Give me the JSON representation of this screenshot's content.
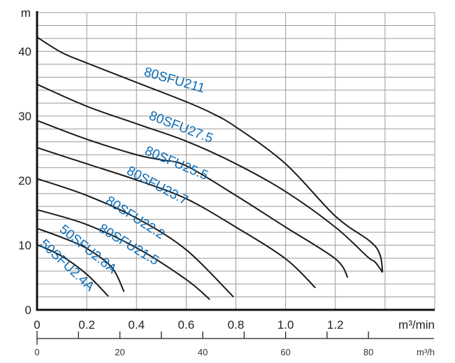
{
  "chart_data": {
    "type": "line",
    "title": "",
    "ylabel": "m",
    "xlabel": "m³/min",
    "x2label": "m³/h",
    "xlim": [
      0,
      1.6
    ],
    "ylim": [
      0,
      46
    ],
    "x2lim": [
      0,
      96
    ],
    "grid": true,
    "xticks": [
      "0",
      "0.2",
      "0.4",
      "0.6",
      "0.8",
      "1.0",
      "1.2"
    ],
    "xtick_values": [
      0,
      0.2,
      0.4,
      0.6,
      0.8,
      1.0,
      1.2
    ],
    "yticks": [
      "0",
      "10",
      "20",
      "30",
      "40"
    ],
    "ytick_values": [
      0,
      10,
      20,
      30,
      40
    ],
    "x2ticks": [
      "0",
      "20",
      "40",
      "60",
      "80"
    ],
    "x2tick_values": [
      0,
      20,
      40,
      60,
      80
    ],
    "series": [
      {
        "name": "80SFU211",
        "points": [
          [
            0,
            42.2
          ],
          [
            0.1,
            39.8
          ],
          [
            0.2,
            38.2
          ],
          [
            0.4,
            35.2
          ],
          [
            0.6,
            32.2
          ],
          [
            0.7,
            30.5
          ],
          [
            0.8,
            28.3
          ],
          [
            1.0,
            22.6
          ],
          [
            1.2,
            14.5
          ],
          [
            1.34,
            10.6
          ],
          [
            1.38,
            8.5
          ],
          [
            1.39,
            5.8
          ]
        ]
      },
      {
        "name": "80SFU27.5",
        "points": [
          [
            0,
            34.9
          ],
          [
            0.2,
            31.5
          ],
          [
            0.4,
            28.8
          ],
          [
            0.6,
            26.1
          ],
          [
            0.8,
            22.6
          ],
          [
            1.0,
            18.3
          ],
          [
            1.2,
            12.8
          ],
          [
            1.33,
            8.2
          ],
          [
            1.36,
            7.4
          ],
          [
            1.39,
            5.8
          ]
        ]
      },
      {
        "name": "80SFU25.5",
        "points": [
          [
            0,
            29.3
          ],
          [
            0.2,
            26.4
          ],
          [
            0.4,
            24.0
          ],
          [
            0.5,
            23.2
          ],
          [
            0.6,
            22.3
          ],
          [
            0.8,
            17.7
          ],
          [
            1.0,
            12.8
          ],
          [
            1.2,
            7.9
          ],
          [
            1.25,
            5.0
          ]
        ]
      },
      {
        "name": "80SFU23.7",
        "points": [
          [
            0,
            25.1
          ],
          [
            0.2,
            22.6
          ],
          [
            0.4,
            20.1
          ],
          [
            0.6,
            17.2
          ],
          [
            0.8,
            12.8
          ],
          [
            1.0,
            7.9
          ],
          [
            1.12,
            3.4
          ]
        ]
      },
      {
        "name": "80SFU22.2",
        "points": [
          [
            0,
            20.3
          ],
          [
            0.2,
            17.7
          ],
          [
            0.4,
            14.2
          ],
          [
            0.6,
            9.3
          ],
          [
            0.79,
            2.0
          ]
        ]
      },
      {
        "name": "80SFU21.5",
        "points": [
          [
            0,
            15.5
          ],
          [
            0.2,
            13.2
          ],
          [
            0.4,
            9.6
          ],
          [
            0.6,
            4.7
          ],
          [
            0.695,
            1.6
          ]
        ]
      },
      {
        "name": "50SFU2.8A",
        "points": [
          [
            0,
            12.6
          ],
          [
            0.1,
            11.2
          ],
          [
            0.2,
            9.5
          ],
          [
            0.3,
            6.6
          ],
          [
            0.35,
            2.8
          ]
        ]
      },
      {
        "name": "50SFU2.4A",
        "points": [
          [
            0,
            10.1
          ],
          [
            0.1,
            8.3
          ],
          [
            0.2,
            5.5
          ],
          [
            0.287,
            2.1
          ]
        ]
      }
    ]
  }
}
